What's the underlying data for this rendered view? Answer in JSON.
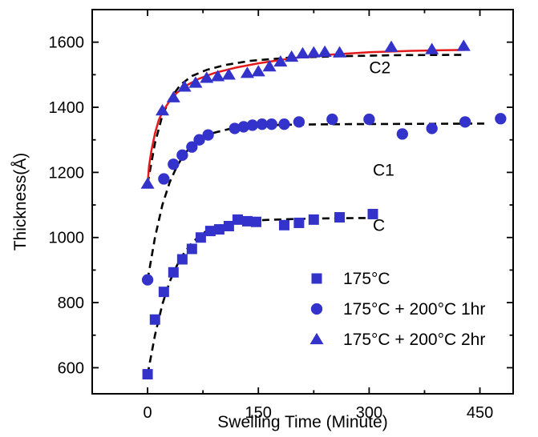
{
  "chart_data": {
    "type": "scatter",
    "title": "",
    "xlabel": "Swelling Time (Minute)",
    "ylabel": "Thickness(Å)",
    "xlim": [
      -75,
      495
    ],
    "ylim": [
      520,
      1700
    ],
    "xticks": [
      0,
      150,
      300,
      450
    ],
    "yticks": [
      600,
      800,
      1000,
      1200,
      1400,
      1600
    ],
    "grid": false,
    "legend_position": "bottom-right",
    "series": [
      {
        "name": "175°C",
        "marker": "square",
        "color": "#3333cc",
        "points": [
          [
            0,
            580
          ],
          [
            10,
            748
          ],
          [
            22,
            833
          ],
          [
            35,
            893
          ],
          [
            47,
            933
          ],
          [
            60,
            965
          ],
          [
            72,
            1000
          ],
          [
            85,
            1020
          ],
          [
            97,
            1025
          ],
          [
            110,
            1035
          ],
          [
            122,
            1055
          ],
          [
            135,
            1050
          ],
          [
            147,
            1048
          ],
          [
            185,
            1038
          ],
          [
            205,
            1045
          ],
          [
            225,
            1055
          ],
          [
            260,
            1062
          ],
          [
            305,
            1072
          ]
        ]
      },
      {
        "name": "175°C + 200°C 1hr",
        "marker": "circle",
        "color": "#3333cc",
        "points": [
          [
            0,
            870
          ],
          [
            22,
            1180
          ],
          [
            35,
            1225
          ],
          [
            47,
            1253
          ],
          [
            60,
            1278
          ],
          [
            70,
            1300
          ],
          [
            82,
            1315
          ],
          [
            118,
            1335
          ],
          [
            130,
            1340
          ],
          [
            142,
            1345
          ],
          [
            155,
            1348
          ],
          [
            168,
            1348
          ],
          [
            185,
            1348
          ],
          [
            205,
            1355
          ],
          [
            250,
            1363
          ],
          [
            300,
            1363
          ],
          [
            345,
            1318
          ],
          [
            385,
            1335
          ],
          [
            430,
            1355
          ],
          [
            478,
            1365
          ]
        ]
      },
      {
        "name": "175°C + 200°C 2hr",
        "marker": "triangle",
        "color": "#3333cc",
        "points": [
          [
            0,
            1165
          ],
          [
            20,
            1390
          ],
          [
            35,
            1430
          ],
          [
            50,
            1463
          ],
          [
            65,
            1475
          ],
          [
            80,
            1490
          ],
          [
            95,
            1495
          ],
          [
            110,
            1500
          ],
          [
            135,
            1505
          ],
          [
            150,
            1510
          ],
          [
            165,
            1525
          ],
          [
            180,
            1540
          ],
          [
            195,
            1555
          ],
          [
            210,
            1565
          ],
          [
            225,
            1568
          ],
          [
            240,
            1570
          ],
          [
            260,
            1568
          ],
          [
            330,
            1585
          ],
          [
            385,
            1578
          ],
          [
            428,
            1588
          ]
        ]
      }
    ],
    "fit_curves": [
      {
        "style": "dashed",
        "color": "#000000",
        "points": [
          [
            0,
            580
          ],
          [
            10,
            700
          ],
          [
            20,
            795
          ],
          [
            30,
            865
          ],
          [
            40,
            915
          ],
          [
            50,
            955
          ],
          [
            60,
            983
          ],
          [
            70,
            1005
          ],
          [
            80,
            1020
          ],
          [
            95,
            1035
          ],
          [
            110,
            1044
          ],
          [
            130,
            1050
          ],
          [
            160,
            1054
          ],
          [
            200,
            1057
          ],
          [
            250,
            1059
          ],
          [
            310,
            1060
          ]
        ]
      },
      {
        "style": "dashed",
        "color": "#000000",
        "points": [
          [
            0,
            870
          ],
          [
            10,
            1000
          ],
          [
            20,
            1100
          ],
          [
            30,
            1170
          ],
          [
            40,
            1220
          ],
          [
            50,
            1257
          ],
          [
            60,
            1282
          ],
          [
            75,
            1305
          ],
          [
            90,
            1322
          ],
          [
            110,
            1333
          ],
          [
            140,
            1342
          ],
          [
            180,
            1346
          ],
          [
            250,
            1348
          ],
          [
            350,
            1349
          ],
          [
            460,
            1350
          ]
        ]
      },
      {
        "style": "dashed",
        "color": "#000000",
        "points": [
          [
            0,
            1165
          ],
          [
            10,
            1290
          ],
          [
            20,
            1375
          ],
          [
            30,
            1425
          ],
          [
            45,
            1470
          ],
          [
            60,
            1496
          ],
          [
            80,
            1515
          ],
          [
            105,
            1530
          ],
          [
            140,
            1543
          ],
          [
            190,
            1552
          ],
          [
            260,
            1557
          ],
          [
            340,
            1560
          ],
          [
            430,
            1561
          ]
        ]
      },
      {
        "style": "solid",
        "color": "#e31a1c",
        "points": [
          [
            0,
            1165
          ],
          [
            2,
            1220
          ],
          [
            5,
            1265
          ],
          [
            10,
            1320
          ],
          [
            15,
            1360
          ],
          [
            20,
            1385
          ],
          [
            30,
            1420
          ],
          [
            40,
            1445
          ],
          [
            55,
            1470
          ],
          [
            70,
            1488
          ],
          [
            90,
            1505
          ],
          [
            120,
            1522
          ],
          [
            150,
            1535
          ],
          [
            200,
            1552
          ],
          [
            250,
            1562
          ],
          [
            300,
            1569
          ],
          [
            350,
            1573
          ],
          [
            400,
            1575
          ],
          [
            430,
            1576
          ]
        ]
      }
    ],
    "annotations": [
      {
        "text": "C2",
        "x": 300,
        "y": 1505
      },
      {
        "text": "C1",
        "x": 305,
        "y": 1190
      },
      {
        "text": "C",
        "x": 305,
        "y": 1020
      }
    ]
  }
}
